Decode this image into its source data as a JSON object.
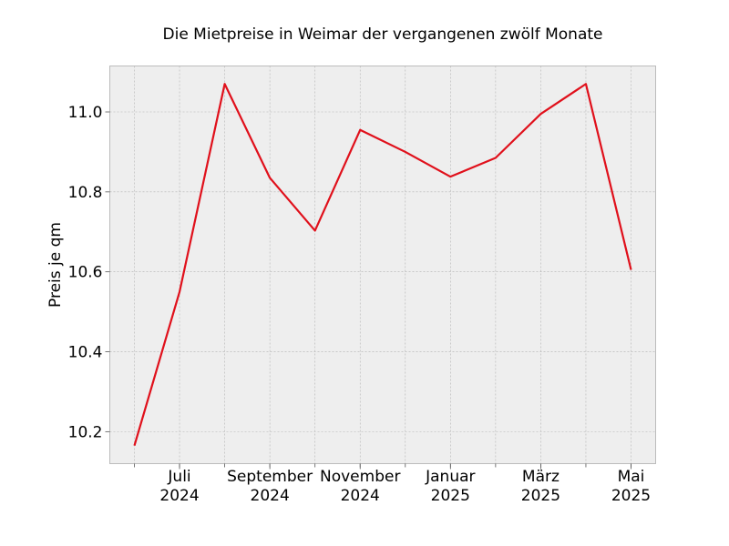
{
  "chart_data": {
    "type": "line",
    "title": "Die Mietpreise in Weimar der vergangenen zwölf Monate",
    "xlabel": "",
    "ylabel": "Preis je qm",
    "grid": true,
    "background_color": "#eeeeee",
    "line_color": "#e0101b",
    "x": [
      "2024-06",
      "2024-07",
      "2024-08",
      "2024-09",
      "2024-10",
      "2024-11",
      "2024-12",
      "2025-01",
      "2025-02",
      "2025-03",
      "2025-04",
      "2025-05"
    ],
    "series": [
      {
        "values": [
          10.165,
          10.55,
          11.07,
          10.835,
          10.703,
          10.955,
          10.9,
          10.838,
          10.885,
          10.995,
          11.07,
          10.605
        ]
      }
    ],
    "ylim": [
      10.12,
      11.115
    ],
    "yticks": [
      {
        "value": 10.2,
        "label": "10.2"
      },
      {
        "value": 10.4,
        "label": "10.4"
      },
      {
        "value": 10.6,
        "label": "10.6"
      },
      {
        "value": 10.8,
        "label": "10.8"
      },
      {
        "value": 11.0,
        "label": "11.0"
      }
    ],
    "xticks": [
      {
        "index": 1,
        "line1": "Juli",
        "line2": "2024"
      },
      {
        "index": 3,
        "line1": "September",
        "line2": "2024"
      },
      {
        "index": 5,
        "line1": "November",
        "line2": "2024"
      },
      {
        "index": 7,
        "line1": "Januar",
        "line2": "2025"
      },
      {
        "index": 9,
        "line1": "März",
        "line2": "2025"
      },
      {
        "index": 11,
        "line1": "Mai",
        "line2": "2025"
      }
    ]
  }
}
